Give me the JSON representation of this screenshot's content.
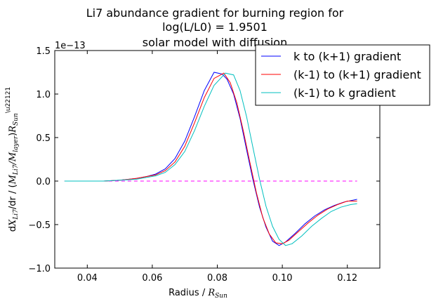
{
  "chart_data": {
    "type": "line",
    "title": [
      "Li7 abundance gradient for burning region for",
      "log(L/L0) = 1.9501",
      "solar model with diffusion"
    ],
    "xlabel": "Radius / R_Sun",
    "ylabel": "dX_Li7/dr / (M_Li7/M_layer)R_Sun^-1",
    "y_offset_label": "1e−13",
    "xlim": [
      0.03,
      0.13
    ],
    "ylim": [
      -1.0,
      1.5
    ],
    "x_ticks": [
      0.04,
      0.06,
      0.08,
      0.1,
      0.12
    ],
    "x_tick_labels": [
      "0.04",
      "0.06",
      "0.08",
      "0.10",
      "0.12"
    ],
    "y_ticks": [
      -1.0,
      -0.5,
      0.0,
      0.5,
      1.0,
      1.5
    ],
    "y_tick_labels": [
      "−1.0",
      "−0.5",
      "0.0",
      "0.5",
      "1.0",
      "1.5"
    ],
    "reference_line": {
      "y": 0.0,
      "color": "#ff00ff",
      "style": "dashed"
    },
    "legend_position": "top-right",
    "series": [
      {
        "name": "k to (k+1) gradient",
        "color": "#0000ff",
        "x": [
          0.033,
          0.04,
          0.045,
          0.05,
          0.055,
          0.058,
          0.061,
          0.064,
          0.067,
          0.07,
          0.073,
          0.076,
          0.079,
          0.0815,
          0.083,
          0.085,
          0.087,
          0.089,
          0.091,
          0.093,
          0.095,
          0.097,
          0.099,
          0.101,
          0.104,
          0.107,
          0.11,
          0.113,
          0.116,
          0.119,
          0.123
        ],
        "y": [
          0.0,
          0.0,
          0.0,
          0.01,
          0.03,
          0.05,
          0.08,
          0.14,
          0.26,
          0.46,
          0.74,
          1.04,
          1.25,
          1.23,
          1.17,
          1.0,
          0.72,
          0.36,
          0.01,
          -0.3,
          -0.53,
          -0.69,
          -0.74,
          -0.7,
          -0.6,
          -0.49,
          -0.4,
          -0.33,
          -0.28,
          -0.24,
          -0.21
        ]
      },
      {
        "name": "(k-1) to (k+1) gradient",
        "color": "#ff0000",
        "x": [
          0.033,
          0.04,
          0.045,
          0.05,
          0.055,
          0.058,
          0.061,
          0.064,
          0.067,
          0.07,
          0.073,
          0.076,
          0.079,
          0.082,
          0.084,
          0.086,
          0.088,
          0.09,
          0.092,
          0.094,
          0.096,
          0.098,
          0.1,
          0.102,
          0.105,
          0.108,
          0.111,
          0.114,
          0.117,
          0.12,
          0.123
        ],
        "y": [
          0.0,
          0.0,
          0.0,
          0.01,
          0.03,
          0.05,
          0.07,
          0.12,
          0.22,
          0.4,
          0.67,
          0.96,
          1.18,
          1.24,
          1.13,
          0.9,
          0.58,
          0.22,
          -0.13,
          -0.42,
          -0.61,
          -0.71,
          -0.72,
          -0.68,
          -0.58,
          -0.48,
          -0.39,
          -0.32,
          -0.27,
          -0.23,
          -0.23
        ]
      },
      {
        "name": "(k-1) to k gradient",
        "color": "#00bfbf",
        "x": [
          0.033,
          0.04,
          0.045,
          0.05,
          0.055,
          0.058,
          0.061,
          0.064,
          0.067,
          0.07,
          0.073,
          0.076,
          0.079,
          0.0825,
          0.085,
          0.087,
          0.089,
          0.091,
          0.093,
          0.095,
          0.097,
          0.099,
          0.101,
          0.103,
          0.106,
          0.109,
          0.112,
          0.115,
          0.118,
          0.121,
          0.123
        ],
        "y": [
          0.0,
          0.0,
          0.0,
          0.01,
          0.02,
          0.04,
          0.06,
          0.1,
          0.19,
          0.34,
          0.58,
          0.86,
          1.1,
          1.24,
          1.22,
          1.04,
          0.74,
          0.38,
          0.02,
          -0.29,
          -0.52,
          -0.67,
          -0.74,
          -0.72,
          -0.63,
          -0.52,
          -0.43,
          -0.35,
          -0.3,
          -0.27,
          -0.26
        ]
      }
    ]
  }
}
